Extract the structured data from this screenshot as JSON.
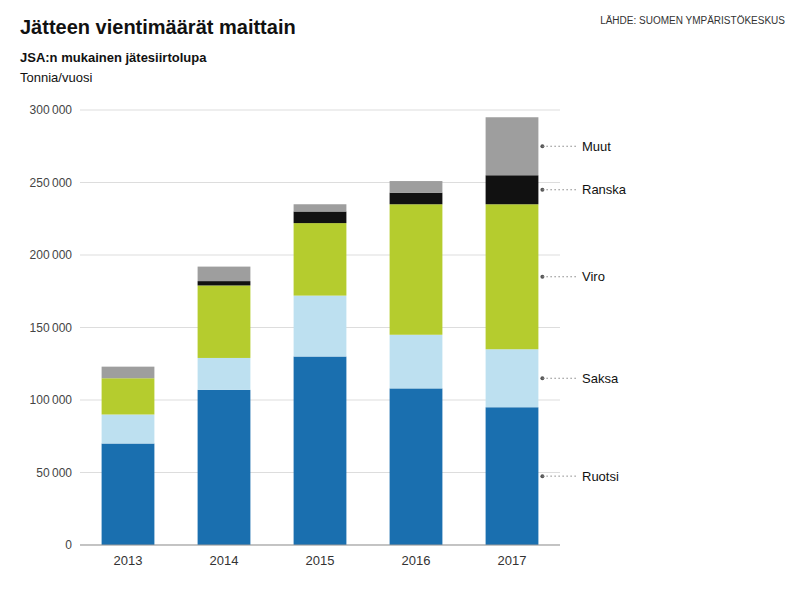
{
  "chart_data": {
    "type": "bar",
    "stacked": true,
    "title": "Jätteen vientimäärät maittain",
    "subtitle": "JSA:n mukainen jätesiirtolupa",
    "ylabel": "Tonnia/vuosi",
    "source": "LÄHDE: SUOMEN YMPÄRISTÖKESKUS",
    "categories": [
      "2013",
      "2014",
      "2015",
      "2016",
      "2017"
    ],
    "series": [
      {
        "name": "Ruotsi",
        "color": "#1a6faf",
        "values": [
          70000,
          107000,
          130000,
          108000,
          95000
        ]
      },
      {
        "name": "Saksa",
        "color": "#bde0f0",
        "values": [
          20000,
          22000,
          42000,
          37000,
          40000
        ]
      },
      {
        "name": "Viro",
        "color": "#b5cc2e",
        "values": [
          25000,
          50000,
          50000,
          90000,
          100000
        ]
      },
      {
        "name": "Ranska",
        "color": "#111111",
        "values": [
          0,
          3000,
          8000,
          8000,
          20000
        ]
      },
      {
        "name": "Muut",
        "color": "#9e9e9e",
        "values": [
          8000,
          10000,
          5000,
          8000,
          40000
        ]
      }
    ],
    "ylim": [
      0,
      300000
    ],
    "yticks": [
      0,
      {
        "value": 50000,
        "label": "50 000"
      },
      {
        "value": 100000,
        "label": "100 000"
      },
      {
        "value": 150000,
        "label": "150 000"
      },
      {
        "value": 200000,
        "label": "200 000"
      },
      {
        "value": 250000,
        "label": "250 000"
      },
      {
        "value": 300000,
        "label": "300 000"
      }
    ],
    "grid": true
  }
}
